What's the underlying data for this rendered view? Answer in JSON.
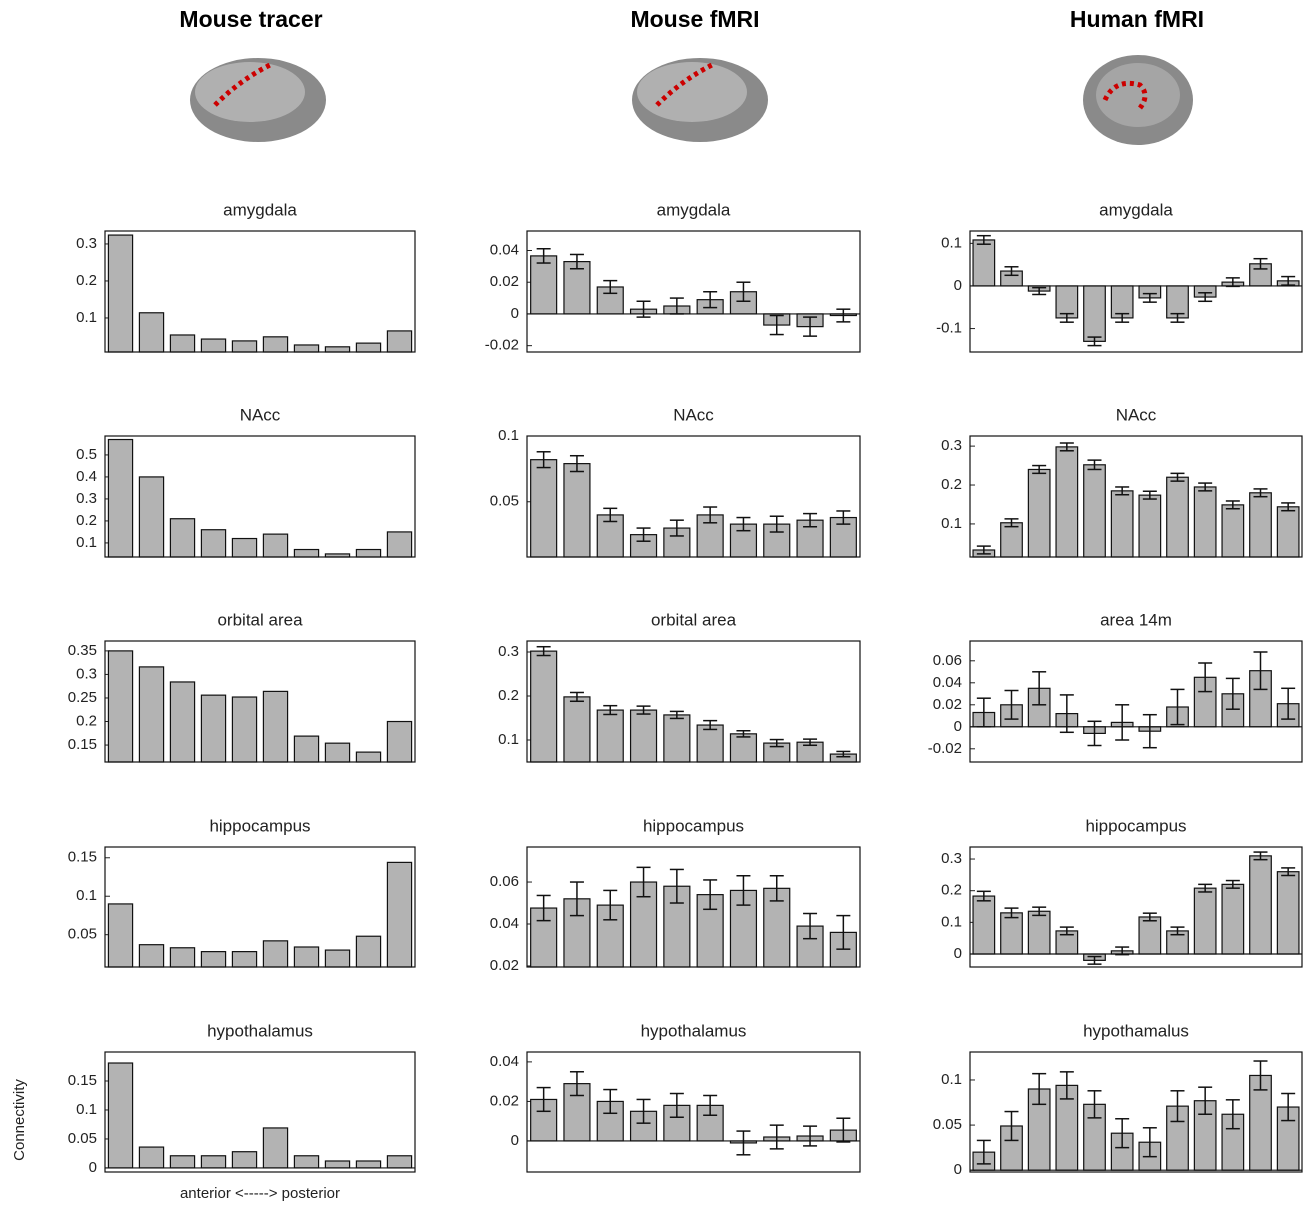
{
  "columns": [
    {
      "title": "Mouse tracer"
    },
    {
      "title": "Mouse fMRI"
    },
    {
      "title": "Human fMRI"
    }
  ],
  "chart_data": [
    {
      "type": "bar",
      "title": "amygdala",
      "color": "#b3b3b3",
      "categories": [
        null,
        null,
        null,
        null,
        null,
        null,
        null,
        null,
        null,
        null
      ],
      "values": [
        0.324,
        0.114,
        0.054,
        0.043,
        0.038,
        0.049,
        0.027,
        0.022,
        0.032,
        0.065
      ],
      "ylim": [
        0.008,
        0.335
      ],
      "yticks": [
        0.1,
        0.2,
        0.3
      ]
    },
    {
      "type": "bar",
      "title": "amygdala",
      "color": "#b3b3b3",
      "categories": [
        null,
        null,
        null,
        null,
        null,
        null,
        null,
        null,
        null,
        null
      ],
      "values": [
        0.0366,
        0.033,
        0.017,
        0.003,
        0.005,
        0.009,
        0.014,
        -0.007,
        -0.008,
        -0.001
      ],
      "errors": [
        0.0045,
        0.0045,
        0.004,
        0.005,
        0.005,
        0.005,
        0.006,
        0.006,
        0.006,
        0.004
      ],
      "ylim": [
        -0.024,
        0.0523
      ],
      "yticks": [
        -0.02,
        0,
        0.02,
        0.04
      ]
    },
    {
      "type": "bar",
      "title": "amygdala",
      "color": "#b3b3b3",
      "categories": [
        null,
        null,
        null,
        null,
        null,
        null,
        null,
        null,
        null,
        null,
        null,
        null
      ],
      "values": [
        0.108,
        0.035,
        -0.012,
        -0.075,
        -0.13,
        -0.075,
        -0.028,
        -0.075,
        -0.026,
        0.009,
        0.052,
        0.012
      ],
      "errors": [
        0.01,
        0.01,
        0.008,
        0.01,
        0.01,
        0.01,
        0.01,
        0.01,
        0.01,
        0.01,
        0.012,
        0.01
      ],
      "ylim": [
        -0.155,
        0.129
      ],
      "yticks": [
        -0.1,
        0,
        0.1
      ]
    },
    {
      "type": "bar",
      "title": "NAcc",
      "color": "#b3b3b3",
      "categories": [
        null,
        null,
        null,
        null,
        null,
        null,
        null,
        null,
        null,
        null
      ],
      "values": [
        0.57,
        0.4,
        0.21,
        0.16,
        0.12,
        0.14,
        0.07,
        0.05,
        0.07,
        0.15
      ],
      "ylim": [
        0.036,
        0.586
      ],
      "yticks": [
        0.1,
        0.2,
        0.3,
        0.4,
        0.5
      ]
    },
    {
      "type": "bar",
      "title": "NAcc",
      "color": "#b3b3b3",
      "categories": [
        null,
        null,
        null,
        null,
        null,
        null,
        null,
        null,
        null,
        null
      ],
      "values": [
        0.082,
        0.079,
        0.04,
        0.025,
        0.03,
        0.04,
        0.033,
        0.033,
        0.036,
        0.038
      ],
      "errors": [
        0.006,
        0.006,
        0.005,
        0.005,
        0.006,
        0.006,
        0.005,
        0.006,
        0.005,
        0.005
      ],
      "ylim": [
        0.008,
        0.1
      ],
      "yticks": [
        0.05,
        0.1
      ]
    },
    {
      "type": "bar",
      "title": "NAcc",
      "color": "#b3b3b3",
      "categories": [
        null,
        null,
        null,
        null,
        null,
        null,
        null,
        null,
        null,
        null,
        null,
        null
      ],
      "values": [
        0.033,
        0.103,
        0.24,
        0.298,
        0.252,
        0.185,
        0.174,
        0.22,
        0.195,
        0.149,
        0.18,
        0.144
      ],
      "errors": [
        0.01,
        0.01,
        0.01,
        0.01,
        0.012,
        0.01,
        0.01,
        0.01,
        0.01,
        0.01,
        0.01,
        0.01
      ],
      "ylim": [
        0.015,
        0.326
      ],
      "yticks": [
        0.1,
        0.2,
        0.3
      ]
    },
    {
      "type": "bar",
      "title": "orbital area",
      "color": "#b3b3b3",
      "categories": [
        null,
        null,
        null,
        null,
        null,
        null,
        null,
        null,
        null,
        null
      ],
      "values": [
        0.35,
        0.316,
        0.284,
        0.256,
        0.252,
        0.264,
        0.169,
        0.154,
        0.135,
        0.2
      ],
      "ylim": [
        0.114,
        0.371
      ],
      "yticks": [
        0.15,
        0.2,
        0.25,
        0.3,
        0.35
      ]
    },
    {
      "type": "bar",
      "title": "orbital area",
      "color": "#b3b3b3",
      "categories": [
        null,
        null,
        null,
        null,
        null,
        null,
        null,
        null,
        null,
        null
      ],
      "values": [
        0.302,
        0.198,
        0.168,
        0.168,
        0.157,
        0.134,
        0.114,
        0.093,
        0.095,
        0.068
      ],
      "errors": [
        0.01,
        0.01,
        0.01,
        0.009,
        0.008,
        0.01,
        0.007,
        0.008,
        0.007,
        0.006
      ],
      "ylim": [
        0.05,
        0.325
      ],
      "yticks": [
        0.1,
        0.2,
        0.3
      ]
    },
    {
      "type": "bar",
      "title": "area 14m",
      "color": "#b3b3b3",
      "categories": [
        null,
        null,
        null,
        null,
        null,
        null,
        null,
        null,
        null,
        null,
        null,
        null
      ],
      "values": [
        0.013,
        0.02,
        0.035,
        0.012,
        -0.006,
        0.004,
        -0.004,
        0.018,
        0.045,
        0.03,
        0.051,
        0.021
      ],
      "errors": [
        0.013,
        0.013,
        0.015,
        0.017,
        0.011,
        0.016,
        0.015,
        0.016,
        0.013,
        0.014,
        0.017,
        0.014
      ],
      "ylim": [
        -0.032,
        0.078
      ],
      "yticks": [
        -0.02,
        0,
        0.02,
        0.04,
        0.06
      ]
    },
    {
      "type": "bar",
      "title": "hippocampus",
      "color": "#b3b3b3",
      "categories": [
        null,
        null,
        null,
        null,
        null,
        null,
        null,
        null,
        null,
        null
      ],
      "values": [
        0.09,
        0.037,
        0.033,
        0.028,
        0.028,
        0.042,
        0.034,
        0.03,
        0.048,
        0.144
      ],
      "ylim": [
        0.008,
        0.164
      ],
      "yticks": [
        0.05,
        0.1,
        0.15
      ]
    },
    {
      "type": "bar",
      "title": "hippocampus",
      "color": "#b3b3b3",
      "categories": [
        null,
        null,
        null,
        null,
        null,
        null,
        null,
        null,
        null,
        null
      ],
      "values": [
        0.0476,
        0.052,
        0.049,
        0.06,
        0.058,
        0.054,
        0.056,
        0.057,
        0.039,
        0.036
      ],
      "errors": [
        0.006,
        0.008,
        0.007,
        0.007,
        0.008,
        0.007,
        0.007,
        0.006,
        0.006,
        0.008
      ],
      "ylim": [
        0.0195,
        0.0767
      ],
      "yticks": [
        0.02,
        0.04,
        0.06
      ]
    },
    {
      "type": "bar",
      "title": "hippocampus",
      "color": "#b3b3b3",
      "categories": [
        null,
        null,
        null,
        null,
        null,
        null,
        null,
        null,
        null,
        null,
        null,
        null
      ],
      "values": [
        0.183,
        0.13,
        0.135,
        0.073,
        -0.02,
        0.01,
        0.117,
        0.073,
        0.208,
        0.22,
        0.31,
        0.26
      ],
      "errors": [
        0.015,
        0.015,
        0.013,
        0.012,
        0.012,
        0.012,
        0.012,
        0.012,
        0.012,
        0.012,
        0.012,
        0.012
      ],
      "ylim": [
        -0.041,
        0.338
      ],
      "yticks": [
        0,
        0.1,
        0.2,
        0.3
      ]
    },
    {
      "type": "bar",
      "title": "hypothalamus",
      "color": "#b3b3b3",
      "categories": [
        null,
        null,
        null,
        null,
        null,
        null,
        null,
        null,
        null,
        null
      ],
      "values": [
        0.181,
        0.036,
        0.021,
        0.021,
        0.028,
        0.069,
        0.021,
        0.012,
        0.012,
        0.021
      ],
      "ylim": [
        -0.007,
        0.2
      ],
      "yticks": [
        0,
        0.05,
        0.1,
        0.15
      ],
      "ylabel": "Connectivity",
      "xlabel": "anterior <-----> posterior"
    },
    {
      "type": "bar",
      "title": "hypothalamus",
      "color": "#b3b3b3",
      "categories": [
        null,
        null,
        null,
        null,
        null,
        null,
        null,
        null,
        null,
        null
      ],
      "values": [
        0.021,
        0.029,
        0.02,
        0.015,
        0.018,
        0.018,
        -0.001,
        0.002,
        0.0025,
        0.0055
      ],
      "errors": [
        0.006,
        0.006,
        0.006,
        0.006,
        0.006,
        0.005,
        0.006,
        0.006,
        0.005,
        0.006
      ],
      "ylim": [
        -0.0157,
        0.045
      ],
      "yticks": [
        0,
        0.02,
        0.04
      ]
    },
    {
      "type": "bar",
      "title": "hypothamalus",
      "color": "#b3b3b3",
      "categories": [
        null,
        null,
        null,
        null,
        null,
        null,
        null,
        null,
        null,
        null,
        null,
        null
      ],
      "values": [
        0.02,
        0.049,
        0.09,
        0.094,
        0.073,
        0.041,
        0.031,
        0.071,
        0.077,
        0.062,
        0.105,
        0.07
      ],
      "errors": [
        0.013,
        0.016,
        0.017,
        0.015,
        0.015,
        0.016,
        0.016,
        0.017,
        0.015,
        0.016,
        0.016,
        0.015
      ],
      "ylim": [
        -0.002,
        0.131
      ],
      "yticks": [
        0,
        0.05,
        0.1
      ]
    }
  ]
}
